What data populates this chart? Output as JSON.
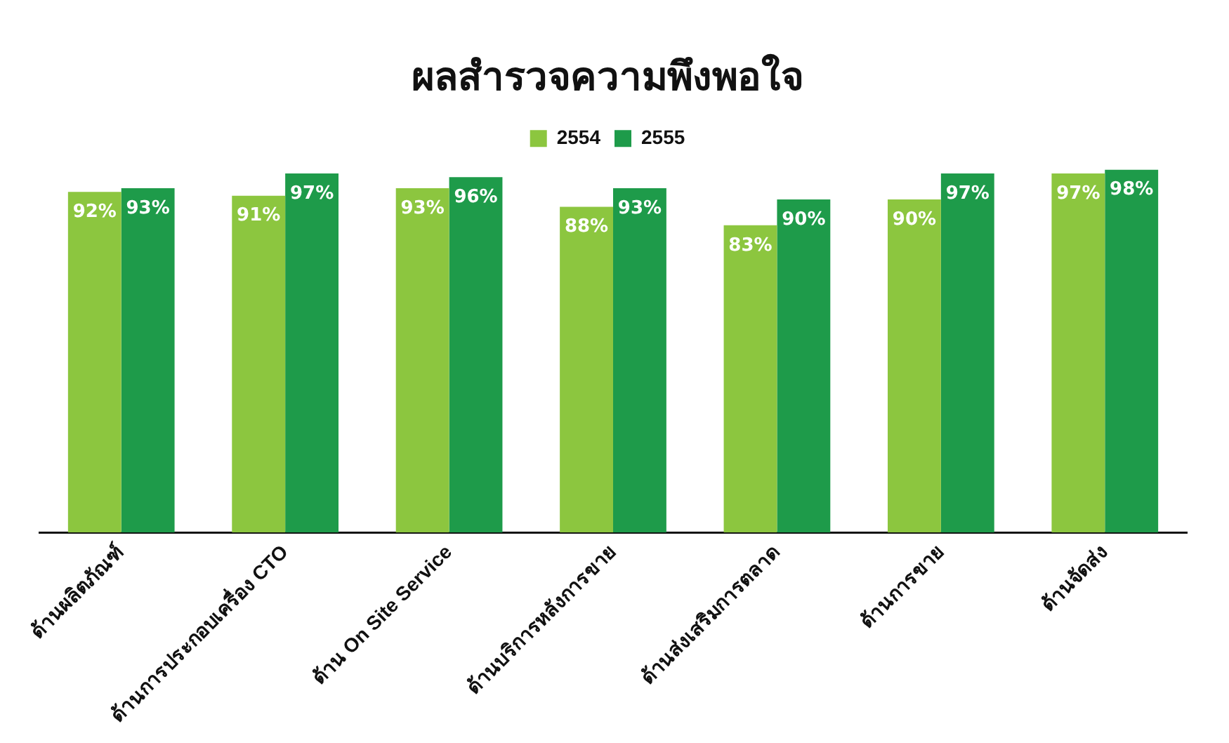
{
  "chart_data": {
    "type": "bar",
    "title": "ผลสำรวจความพึงพอใจ",
    "categories": [
      "ด้านผลิตภัณฑ์",
      "ด้านการประกอบเครื่อง CTO",
      "ด้าน On Site Service",
      "ด้านบริการหลังการขาย",
      "ด้านส่งเสริมการตลาด",
      "ด้านการขาย",
      "ด้านจัดส่ง"
    ],
    "series": [
      {
        "name": "2554",
        "color": "#8cc63f",
        "values": [
          92,
          91,
          93,
          88,
          83,
          90,
          97
        ],
        "value_labels": [
          "92%",
          "91%",
          "93%",
          "88%",
          "83%",
          "90%",
          "97%"
        ]
      },
      {
        "name": "2555",
        "color": "#1e9b4a",
        "values": [
          93,
          97,
          96,
          93,
          90,
          97,
          98
        ],
        "value_labels": [
          "93%",
          "97%",
          "96%",
          "93%",
          "90%",
          "97%",
          "98%"
        ]
      }
    ],
    "tick_labels": "x",
    "grid": false,
    "legend": "top"
  }
}
